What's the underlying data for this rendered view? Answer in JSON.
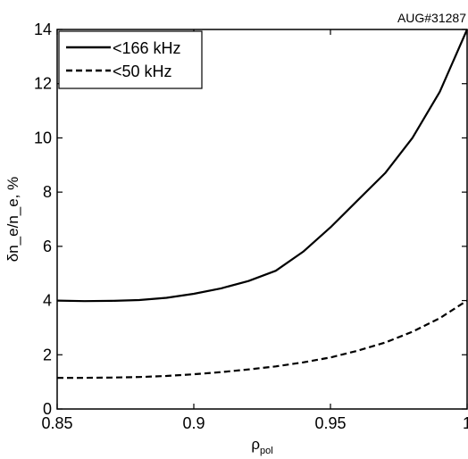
{
  "chart_data": {
    "type": "line",
    "title": "",
    "annotation": "AUG#31287",
    "xlabel": {
      "main": "ρ",
      "sub": "pol"
    },
    "ylabel": "δn_e/n_e, %",
    "xlim": [
      0.85,
      1.0
    ],
    "ylim": [
      0,
      14
    ],
    "xticks": [
      0.85,
      0.9,
      0.95,
      1.0
    ],
    "xtick_labels": [
      "0.85",
      "0.9",
      "0.95",
      "1"
    ],
    "yticks": [
      0,
      2,
      4,
      6,
      8,
      10,
      12,
      14
    ],
    "ytick_labels": [
      "0",
      "2",
      "4",
      "6",
      "8",
      "10",
      "12",
      "14"
    ],
    "grid": false,
    "legend_position": "top-left",
    "series": [
      {
        "name": "<166 kHz",
        "style": "solid",
        "color": "#000000",
        "x": [
          0.85,
          0.86,
          0.87,
          0.88,
          0.89,
          0.9,
          0.91,
          0.92,
          0.93,
          0.94,
          0.95,
          0.96,
          0.97,
          0.98,
          0.99,
          1.0
        ],
        "y": [
          4.0,
          3.98,
          3.99,
          4.02,
          4.1,
          4.25,
          4.45,
          4.72,
          5.1,
          5.8,
          6.7,
          7.7,
          8.7,
          10.0,
          11.7,
          14.0
        ]
      },
      {
        "name": "<50 kHz",
        "style": "dashed",
        "color": "#000000",
        "x": [
          0.85,
          0.86,
          0.87,
          0.88,
          0.89,
          0.9,
          0.91,
          0.92,
          0.93,
          0.94,
          0.95,
          0.96,
          0.97,
          0.98,
          0.99,
          1.0
        ],
        "y": [
          1.15,
          1.15,
          1.16,
          1.18,
          1.22,
          1.28,
          1.36,
          1.46,
          1.57,
          1.72,
          1.9,
          2.15,
          2.45,
          2.85,
          3.35,
          4.0
        ]
      }
    ]
  }
}
